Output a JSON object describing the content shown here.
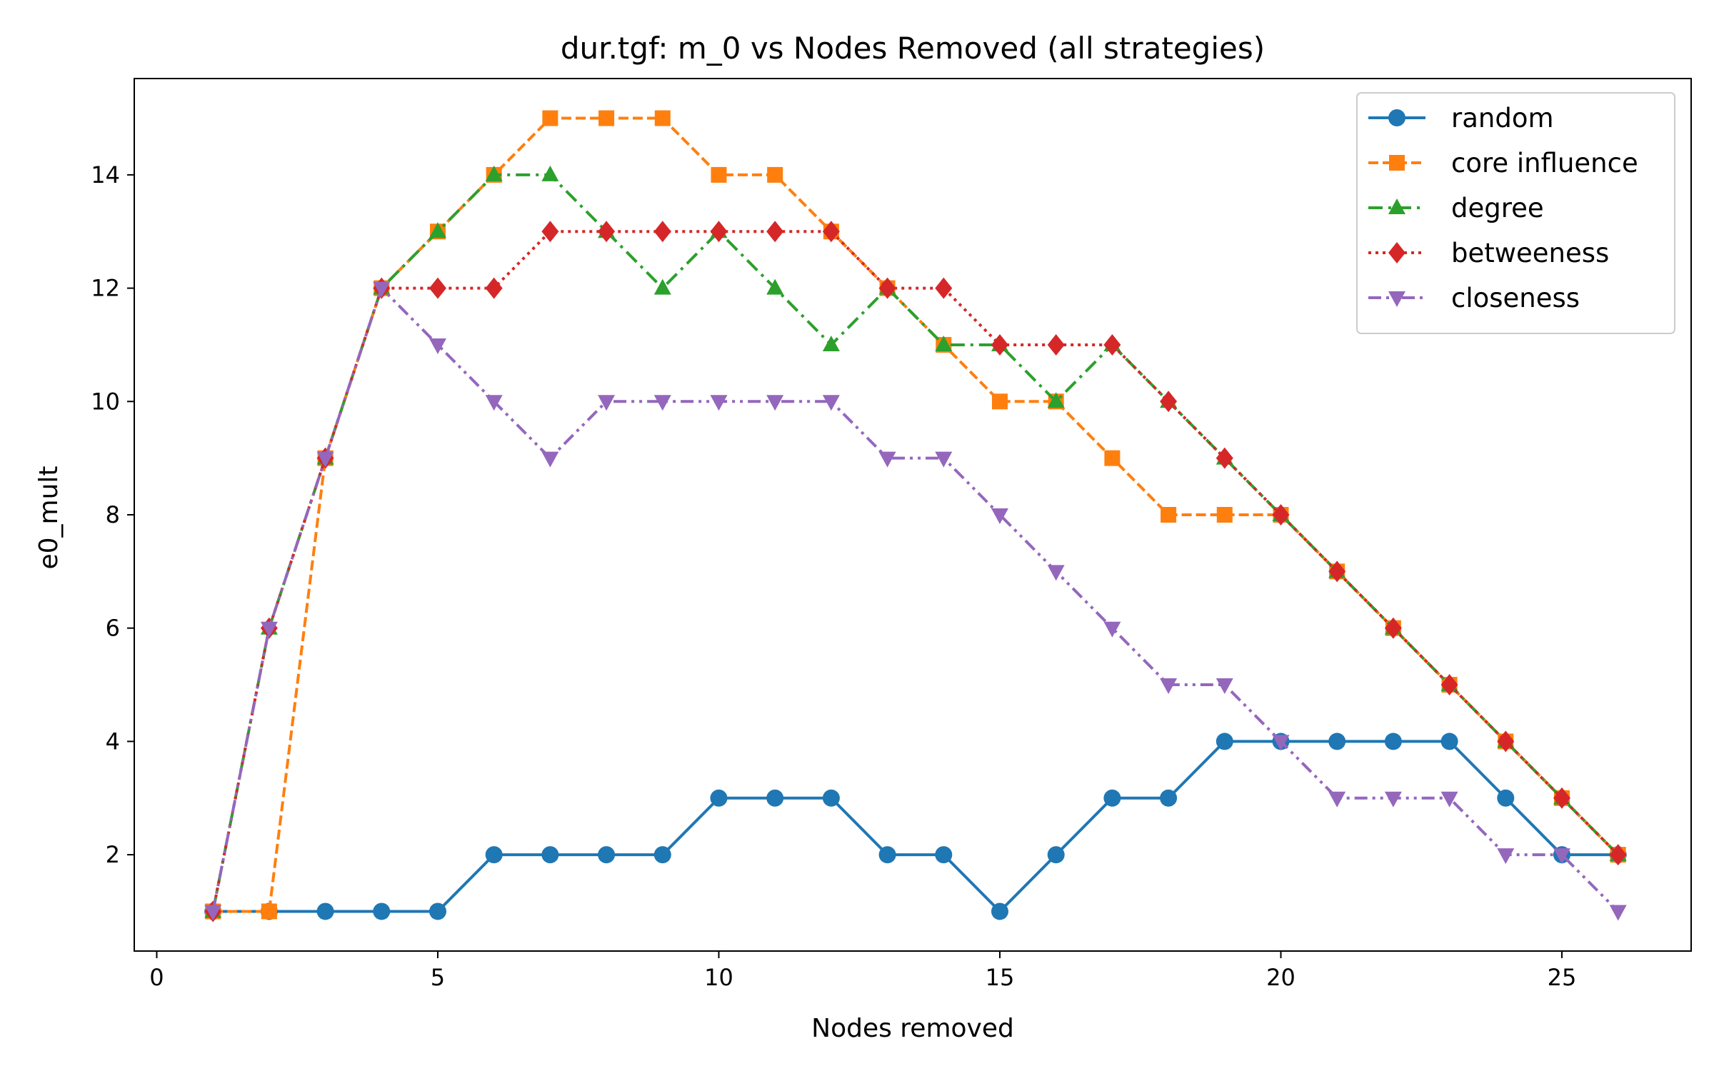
{
  "chart_data": {
    "type": "line",
    "title": "dur.tgf: m_0 vs Nodes Removed (all strategies)",
    "xlabel": "Nodes removed",
    "ylabel": "e0_mult",
    "xlim": [
      -0.4,
      27.3
    ],
    "ylim": [
      0.3,
      15.7
    ],
    "xticks": [
      0,
      5,
      10,
      15,
      20,
      25
    ],
    "yticks": [
      2,
      4,
      6,
      8,
      10,
      12,
      14
    ],
    "grid": false,
    "legend_position": "top-right",
    "x": [
      1,
      2,
      3,
      4,
      5,
      6,
      7,
      8,
      9,
      10,
      11,
      12,
      13,
      14,
      15,
      16,
      17,
      18,
      19,
      20,
      21,
      22,
      23,
      24,
      25,
      26
    ],
    "series": [
      {
        "name": "random",
        "color": "#1f77b4",
        "linestyle": "solid",
        "marker": "circle",
        "values": [
          1,
          1,
          1,
          1,
          1,
          2,
          2,
          2,
          2,
          3,
          3,
          3,
          2,
          2,
          1,
          2,
          3,
          3,
          4,
          4,
          4,
          4,
          4,
          3,
          2,
          2
        ]
      },
      {
        "name": "core influence",
        "color": "#ff7f0e",
        "linestyle": "dashed",
        "marker": "square",
        "values": [
          1,
          1,
          9,
          12,
          13,
          14,
          15,
          15,
          15,
          14,
          14,
          13,
          12,
          11,
          10,
          10,
          9,
          8,
          8,
          8,
          7,
          6,
          5,
          4,
          3,
          2
        ]
      },
      {
        "name": "degree",
        "color": "#2ca02c",
        "linestyle": "dashdot",
        "marker": "triangle-up",
        "values": [
          1,
          6,
          9,
          12,
          13,
          14,
          14,
          13,
          12,
          13,
          12,
          11,
          12,
          11,
          11,
          10,
          11,
          10,
          9,
          8,
          7,
          6,
          5,
          4,
          3,
          2
        ]
      },
      {
        "name": "betweeness",
        "color": "#d62728",
        "linestyle": "dotted",
        "marker": "diamond",
        "values": [
          1,
          6,
          9,
          12,
          12,
          12,
          13,
          13,
          13,
          13,
          13,
          13,
          12,
          12,
          11,
          11,
          11,
          10,
          9,
          8,
          7,
          6,
          5,
          4,
          3,
          2
        ]
      },
      {
        "name": "closeness",
        "color": "#9467bd",
        "linestyle": "dashdotdot",
        "marker": "triangle-down",
        "values": [
          1,
          6,
          9,
          12,
          11,
          10,
          9,
          10,
          10,
          10,
          10,
          10,
          9,
          9,
          8,
          7,
          6,
          5,
          5,
          4,
          3,
          3,
          3,
          2,
          2,
          1
        ]
      }
    ]
  }
}
